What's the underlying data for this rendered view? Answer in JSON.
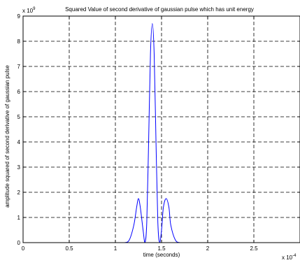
{
  "chart_data": {
    "type": "line",
    "title": "Squared Value of second derivative of gaussian pulse which has unit energy",
    "xlabel": "time (seconds)",
    "ylabel": "amplitude squared of second derivative of gaussian pulse",
    "x_exponent_label": "x 10",
    "x_exponent": "-4",
    "y_exponent_label": "x 10",
    "y_exponent": "9",
    "x_unit_scale": 0.0001,
    "y_unit_scale": 1000000000,
    "xlim": [
      0,
      0.0003
    ],
    "ylim": [
      0,
      9000000000
    ],
    "x_ticks": [
      0,
      5e-05,
      0.0001,
      0.00015,
      0.0002,
      0.00025,
      0.0003
    ],
    "x_tick_labels": [
      "0",
      "0.5",
      "1",
      "1.5",
      "2",
      "2.5",
      ""
    ],
    "y_ticks": [
      0,
      1000000000,
      2000000000,
      3000000000,
      4000000000,
      5000000000,
      6000000000,
      7000000000,
      8000000000,
      9000000000
    ],
    "y_tick_labels": [
      "0",
      "1",
      "2",
      "3",
      "4",
      "5",
      "6",
      "7",
      "8",
      "9"
    ],
    "grid": true,
    "grid_style": "dashed",
    "line_color": "#0000ff",
    "series": [
      {
        "x": [
          0,
          8e-05,
          0.0001,
          0.00011,
          0.000115,
          0.00012,
          0.000123,
          0.000125,
          0.000127,
          0.00013,
          0.000132,
          0.000134,
          0.000136,
          0.000138,
          0.00014,
          0.000142,
          0.000144,
          0.000146,
          0.000148,
          0.00015,
          0.000152,
          0.000155,
          0.000158,
          0.00016,
          0.000165,
          0.00017,
          0.00018,
          0.0002,
          0.0003
        ],
        "y": [
          0,
          0,
          0,
          0,
          100000000,
          700000000,
          1400000000,
          1750000000,
          1400000000,
          500000000,
          0,
          800000000,
          4000000000,
          7500000000,
          8700000000,
          7500000000,
          4000000000,
          800000000,
          0,
          500000000,
          1400000000,
          1750000000,
          1400000000,
          700000000,
          100000000,
          0,
          0,
          0,
          0
        ]
      }
    ]
  }
}
